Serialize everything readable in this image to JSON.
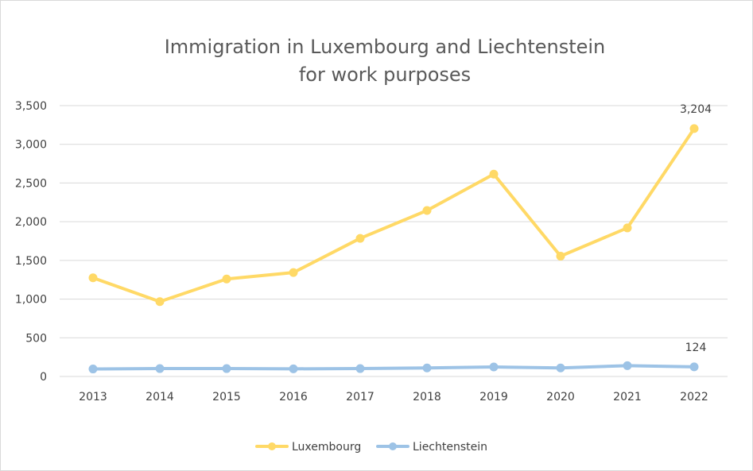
{
  "chart_data": {
    "type": "line",
    "title_lines": [
      "Immigration in Luxembourg and Liechtenstein",
      "for work purposes"
    ],
    "xlabel": "",
    "ylabel": "",
    "categories": [
      "2013",
      "2014",
      "2015",
      "2016",
      "2017",
      "2018",
      "2019",
      "2020",
      "2021",
      "2022"
    ],
    "ylim": [
      0,
      3500
    ],
    "yticks": [
      0,
      500,
      1000,
      1500,
      2000,
      2500,
      3000,
      3500
    ],
    "ytick_labels": [
      "0",
      "500",
      "1,000",
      "1,500",
      "2,000",
      "2,500",
      "3,000",
      "3,500"
    ],
    "grid": true,
    "legend_position": "bottom",
    "series": [
      {
        "name": "Luxembourg",
        "color": "#ffd966",
        "values": [
          1275,
          967,
          1260,
          1343,
          1785,
          2145,
          2615,
          1555,
          1920,
          3204
        ],
        "data_labels": [
          {
            "index": 9,
            "text": "3,204"
          }
        ]
      },
      {
        "name": "Liechtenstein",
        "color": "#9dc3e6",
        "values": [
          97,
          102,
          102,
          99,
          102,
          110,
          123,
          110,
          140,
          124
        ],
        "data_labels": [
          {
            "index": 9,
            "text": "124"
          }
        ]
      }
    ]
  }
}
